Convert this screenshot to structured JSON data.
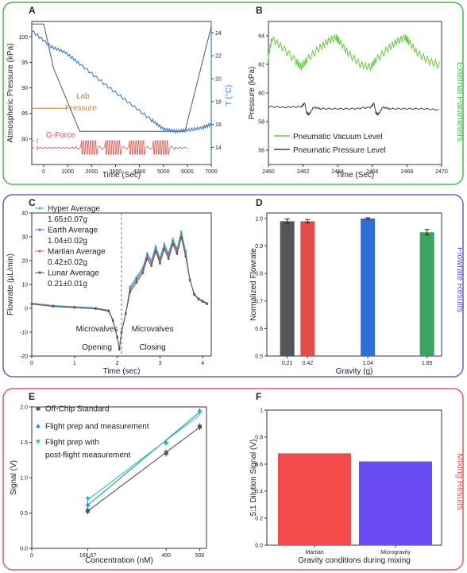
{
  "groups": {
    "external": {
      "label": "External Parameters",
      "color": "#44bb44"
    },
    "flowrate": {
      "label": "Flowrate Results",
      "color": "#6a5acd"
    },
    "mixing": {
      "label": "Mixing Results",
      "color": "#e05a5a"
    }
  },
  "chart_data": [
    {
      "panel": "A",
      "type": "line",
      "xlabel": "Time (Sec)",
      "ylabel": "Atmospheric Pressure (kPa)",
      "y2label": "T (°C)",
      "xlim": [
        -500,
        7000
      ],
      "ylim": [
        75,
        103
      ],
      "y2lim": [
        12.5,
        25
      ],
      "xticks": [
        "0",
        "1000",
        "2000",
        "3000",
        "4000",
        "5000",
        "6000",
        "7000"
      ],
      "yticks": [
        "80",
        "85",
        "90",
        "95",
        "100"
      ],
      "y2ticks": [
        "14",
        "16",
        "18",
        "20",
        "22",
        "24"
      ],
      "annotations": [
        "Lab",
        "Pressure",
        "G-Force"
      ],
      "gforce_ticks": [
        "1",
        "2"
      ],
      "colors": {
        "pressure": "#555555",
        "temperature": "#3a7bd5",
        "gforce": "#d9534f",
        "lab": "#b08a3e"
      },
      "series": [
        {
          "axis": "pressure",
          "x": [
            -500,
            0,
            400,
            1500,
            3000,
            4500,
            5900,
            7000
          ],
          "y": [
            102.5,
            102.5,
            94,
            81.5,
            81.5,
            81.5,
            81.5,
            102
          ]
        },
        {
          "axis": "temperature",
          "x": [
            -500,
            300,
            900,
            1500,
            2500,
            3500,
            4500,
            5000,
            5500,
            6000,
            6600,
            7000
          ],
          "y": [
            24.2,
            22.8,
            22.3,
            21.3,
            19.6,
            18.0,
            16.4,
            15.6,
            15.4,
            15.5,
            15.7,
            16.0
          ]
        },
        {
          "axis": "lab",
          "x": [
            -500,
            1000
          ],
          "y": [
            86,
            86
          ]
        }
      ]
    },
    {
      "panel": "B",
      "type": "line",
      "xlabel": "Time (Sec)",
      "ylabel": "Pressure (kPa)",
      "xlim": [
        2460,
        2470
      ],
      "ylim": [
        55,
        65
      ],
      "xticks": [
        "2460",
        "2462",
        "2464",
        "2466",
        "2468",
        "2470"
      ],
      "yticks": [
        "56",
        "58",
        "60",
        "62",
        "64"
      ],
      "series": [
        {
          "name": "Pneumatic Vacuum Level",
          "color": "#66cc44",
          "x": [
            2460,
            2460.2,
            2460.8,
            2461.6,
            2461.9,
            2462.2,
            2462.9,
            2463.4,
            2463.9,
            2464.1,
            2464.6,
            2465.3,
            2465.9,
            2466.2,
            2466.9,
            2467.4,
            2467.9,
            2468.1,
            2468.6,
            2469.3,
            2470
          ],
          "y": [
            62.6,
            63.8,
            63.2,
            62.2,
            61.8,
            62.3,
            63.1,
            63.6,
            63.9,
            63.6,
            62.8,
            62.0,
            61.8,
            62.3,
            63.1,
            63.6,
            63.9,
            63.6,
            62.8,
            62.2,
            61.9
          ]
        },
        {
          "name": "Pneumatic Pressure Level",
          "color": "#444444",
          "x": [
            2460,
            2461,
            2461.9,
            2462.1,
            2462.2,
            2462.35,
            2462.6,
            2463,
            2464,
            2465,
            2465.9,
            2466.1,
            2466.2,
            2466.35,
            2466.6,
            2467,
            2468,
            2469,
            2470
          ],
          "y": [
            59.05,
            59.0,
            59.05,
            59.3,
            58.6,
            58.5,
            59.0,
            58.9,
            58.9,
            58.9,
            59.0,
            59.3,
            58.6,
            58.5,
            59.0,
            58.9,
            58.9,
            58.9,
            58.8
          ]
        }
      ]
    },
    {
      "panel": "C",
      "type": "line",
      "xlabel": "Time (sec)",
      "ylabel": "Flowrate (µL/min)",
      "xlim": [
        0,
        4.2
      ],
      "ylim": [
        -20,
        40
      ],
      "xticks": [
        "0",
        "1",
        "2",
        "3",
        "4"
      ],
      "yticks": [
        "-20",
        "-10",
        "0",
        "10",
        "20",
        "30",
        "40"
      ],
      "annotations": [
        "Microvalves",
        "Opening",
        "Microvalves",
        "Closing"
      ],
      "series": [
        {
          "name": "Hyper Average",
          "value": "1.65±0.07g",
          "color": "#2ec4b6"
        },
        {
          "name": "Earth Average",
          "value": "1.04±0.02g",
          "color": "#3a7bd5"
        },
        {
          "name": "Martian Average",
          "value": "0.42±0.02g",
          "color": "#e05a5a"
        },
        {
          "name": "Lunar Average",
          "value": "0.21±0.01g",
          "color": "#555555"
        }
      ],
      "x": [
        0,
        0.5,
        1.0,
        1.5,
        1.8,
        1.9,
        2.0,
        2.05,
        2.1,
        2.2,
        2.3,
        2.45,
        2.6,
        2.7,
        2.8,
        2.9,
        3.0,
        3.1,
        3.2,
        3.3,
        3.4,
        3.5,
        3.6,
        3.7,
        3.8,
        3.9,
        4.0,
        4.1
      ],
      "y": [
        2,
        1,
        0.5,
        0,
        -1,
        -5,
        -12,
        -17,
        -10,
        -2,
        8,
        12,
        16,
        22,
        19,
        25,
        20,
        26,
        22,
        28,
        24,
        31,
        23,
        12,
        6,
        4,
        3,
        2
      ]
    },
    {
      "panel": "D",
      "type": "bar",
      "xlabel": "Gravity (g)",
      "ylabel": "Normalized Flowrate",
      "ylim": [
        0.5,
        1.02
      ],
      "yticks": [
        "0.5",
        "0.6",
        "0.7",
        "0.8",
        "0.9",
        "1.0"
      ],
      "categories": [
        "0.21",
        "0.42",
        "1.04",
        "1.65"
      ],
      "x": [
        0.21,
        0.42,
        1.04,
        1.65
      ],
      "values": [
        0.99,
        0.99,
        1.0,
        0.95
      ],
      "errors": [
        0.008,
        0.006,
        0.003,
        0.01
      ],
      "colors": [
        "#555555",
        "#e84a4a",
        "#2a6fdb",
        "#3aa55c"
      ]
    },
    {
      "panel": "E",
      "type": "scatter",
      "xlabel": "Concentration (nM)",
      "ylabel": "Signal (V)",
      "xlim": [
        0,
        520
      ],
      "ylim": [
        0,
        2.0
      ],
      "xticks": [
        "0",
        "166.67",
        "400",
        "500"
      ],
      "yticks": [
        "0.0",
        "0.5",
        "1.0",
        "1.5",
        "2.0"
      ],
      "series": [
        {
          "name": "Off-Chip Standard",
          "marker": "square",
          "color": "#555555",
          "x": [
            166.67,
            400,
            500
          ],
          "y": [
            0.53,
            1.35,
            1.72
          ],
          "err": [
            0.05,
            0.05,
            0.05
          ]
        },
        {
          "name": "Flight prep and measurement",
          "marker": "triangle-up",
          "color": "#2a8fd6",
          "x": [
            166.67,
            400,
            500
          ],
          "y": [
            0.62,
            1.5,
            1.95
          ],
          "err": [
            0.04,
            0.03,
            0.03
          ]
        },
        {
          "name": "Flight prep with post-flight measurement",
          "legend_lines": [
            "Flight prep with",
            "post-flight measurement"
          ],
          "marker": "triangle-down",
          "color": "#2ec4a0",
          "x": [
            166.67,
            400,
            500
          ],
          "y": [
            0.7,
            1.48,
            1.92
          ],
          "err": [
            0.04,
            0.03,
            0.03
          ]
        }
      ]
    },
    {
      "panel": "F",
      "type": "bar",
      "xlabel": "Gravity conditions during mixing",
      "ylabel": "5:1 Dilution Signal (V)",
      "ylim": [
        0,
        1.0
      ],
      "yticks": [
        "0.0",
        "0.2",
        "0.4",
        "0.6",
        "0.8",
        "1"
      ],
      "categories": [
        "Martian",
        "Microgravity"
      ],
      "values": [
        0.68,
        0.62
      ],
      "colors": [
        "#f44a4a",
        "#6a4cf5"
      ]
    }
  ]
}
